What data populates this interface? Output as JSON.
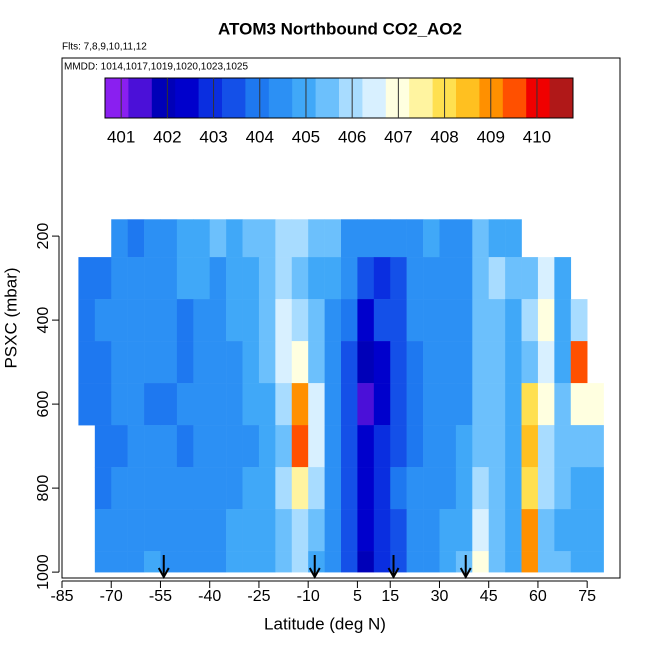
{
  "chart_data": {
    "type": "heatmap",
    "title": "ATOM3 Northbound CO2_AO2",
    "annotations": [
      "Flts: 7,8,9,10,11,12",
      "MMDD: 1014,1017,1019,1020,1023,1025"
    ],
    "xlabel": "Latitude (deg N)",
    "ylabel": "PSXC (mbar)",
    "xlim": [
      -85,
      85
    ],
    "xticks": [
      -85,
      -70,
      -55,
      -40,
      -25,
      -10,
      5,
      15,
      30,
      45,
      60,
      75
    ],
    "ylim": [
      1014,
      -224
    ],
    "yticks": [
      200,
      400,
      600,
      800,
      1000
    ],
    "x_edges": [
      -80,
      -75,
      -70,
      -65,
      -60,
      -55,
      -50,
      -45,
      -40,
      -35,
      -30,
      -25,
      -20,
      -15,
      -10,
      -5,
      0,
      5,
      10,
      15,
      20,
      25,
      30,
      35,
      40,
      45,
      50,
      55,
      60,
      65,
      70,
      75,
      80
    ],
    "y_edges": [
      160,
      250,
      350,
      450,
      550,
      650,
      750,
      850,
      950,
      1000
    ],
    "values": [
      [
        null,
        null,
        404.2,
        404.0,
        404.3,
        404.5,
        404.8,
        405.2,
        405.6,
        405.0,
        405.5,
        405.3,
        405.8,
        405.9,
        405.6,
        405.4,
        404.6,
        404.3,
        404.6,
        404.4,
        404.5,
        404.8,
        404.3,
        404.5,
        405.6,
        405.2,
        404.8,
        null,
        null,
        null,
        null,
        null
      ],
      [
        404.0,
        404.1,
        404.2,
        404.3,
        404.5,
        404.6,
        404.8,
        405.0,
        404.6,
        405.2,
        405.0,
        405.4,
        405.8,
        405.6,
        405.2,
        404.8,
        404.2,
        403.6,
        403.0,
        403.4,
        404.2,
        404.5,
        404.2,
        404.6,
        405.5,
        405.8,
        405.3,
        405.5,
        406.5,
        405.2,
        null,
        null
      ],
      [
        404.0,
        404.2,
        404.4,
        404.2,
        404.5,
        404.3,
        404.0,
        404.4,
        404.6,
        404.8,
        405.0,
        405.6,
        406.6,
        405.9,
        405.3,
        404.6,
        403.8,
        402.4,
        403.2,
        403.4,
        404.3,
        404.4,
        404.6,
        404.4,
        405.4,
        405.6,
        405.2,
        405.8,
        407.2,
        405.0,
        406.2,
        null
      ],
      [
        404.0,
        404.0,
        404.2,
        404.4,
        404.3,
        404.2,
        404.0,
        404.3,
        404.4,
        404.6,
        404.9,
        405.4,
        406.4,
        406.8,
        405.4,
        404.5,
        403.4,
        401.8,
        402.6,
        403.4,
        404.0,
        404.3,
        404.5,
        404.6,
        405.3,
        405.7,
        405.1,
        405.6,
        406.5,
        405.2,
        409.5,
        null
      ],
      [
        404.0,
        404.1,
        404.2,
        404.3,
        404.1,
        404.0,
        404.2,
        404.4,
        404.5,
        404.6,
        404.8,
        405.2,
        405.8,
        408.8,
        406.5,
        404.6,
        403.2,
        401.6,
        402.4,
        403.3,
        404.0,
        404.2,
        404.4,
        404.7,
        405.4,
        405.5,
        405.0,
        407.8,
        406.8,
        405.4,
        407.2,
        406.8
      ],
      [
        null,
        404.0,
        404.1,
        404.2,
        404.3,
        404.2,
        404.1,
        404.3,
        404.4,
        404.5,
        404.6,
        405.0,
        405.6,
        409.4,
        406.6,
        404.5,
        403.4,
        402.3,
        402.8,
        403.6,
        404.1,
        404.3,
        404.4,
        404.8,
        405.5,
        405.4,
        405.0,
        408.6,
        406.2,
        405.3,
        405.6,
        405.3
      ],
      [
        null,
        404.0,
        404.2,
        404.3,
        404.5,
        404.4,
        404.2,
        404.4,
        404.5,
        404.6,
        404.8,
        405.2,
        405.8,
        407.6,
        406.0,
        404.6,
        403.6,
        402.6,
        403.0,
        403.8,
        404.2,
        404.3,
        404.6,
        405.0,
        406.2,
        405.5,
        405.2,
        408.0,
        405.8,
        405.4,
        405.2,
        405.0
      ],
      [
        null,
        404.2,
        404.4,
        404.5,
        404.6,
        404.5,
        404.3,
        404.4,
        404.6,
        404.8,
        404.9,
        405.2,
        405.6,
        406.2,
        405.4,
        404.4,
        403.4,
        402.2,
        403.0,
        403.6,
        404.3,
        404.5,
        404.8,
        405.2,
        406.6,
        405.4,
        405.1,
        409.0,
        405.6,
        405.2,
        405.0,
        404.8
      ],
      [
        null,
        404.3,
        404.5,
        404.6,
        404.8,
        404.6,
        404.4,
        404.5,
        404.6,
        404.8,
        405.0,
        405.2,
        405.4,
        405.8,
        405.2,
        404.3,
        403.2,
        401.8,
        403.0,
        403.6,
        404.4,
        404.6,
        404.9,
        405.4,
        406.9,
        405.3,
        405.0,
        409.2,
        405.5,
        405.3,
        405.1,
        404.9
      ]
    ],
    "colorbar": {
      "lim": [
        400.65,
        410.78
      ],
      "ticks": [
        401,
        402,
        403,
        404,
        405,
        406,
        407,
        408,
        409,
        410
      ],
      "colors": [
        "#8a1ff0",
        "#4b10d8",
        "#0000b8",
        "#0000cc",
        "#0a2ee0",
        "#1450e8",
        "#1e78f0",
        "#2c90f4",
        "#40a8f8",
        "#6cc0fc",
        "#a8dcff",
        "#d8f0ff",
        "#ffffe0",
        "#fff4a0",
        "#ffe050",
        "#ffc020",
        "#ff9000",
        "#ff5000",
        "#f00000",
        "#b01818"
      ]
    },
    "arrows": [
      -54,
      -8,
      16,
      38
    ]
  }
}
